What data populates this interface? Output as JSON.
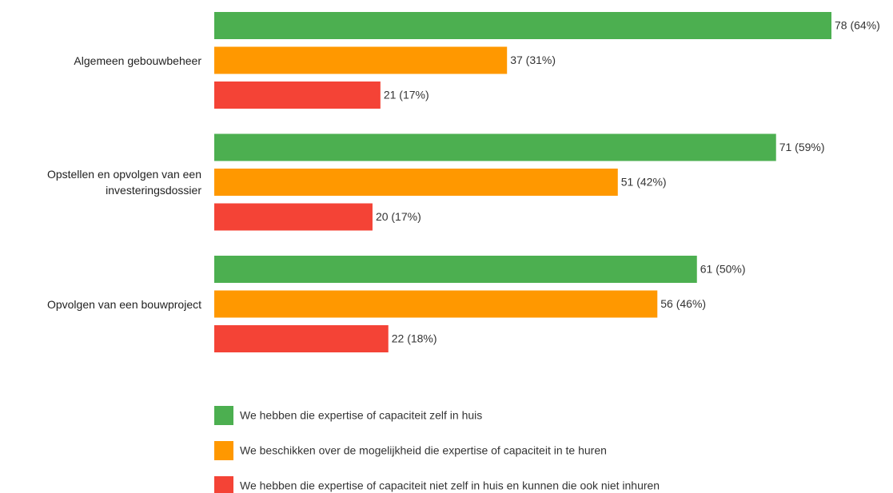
{
  "chart_data": {
    "type": "bar",
    "orientation": "horizontal",
    "categories": [
      "Algemeen gebouwbeheer",
      "Opstellen en opvolgen van een investeringsdossier",
      "Opvolgen van een bouwproject"
    ],
    "series": [
      {
        "name": "We hebben die expertise of capaciteit zelf in huis",
        "color": "#4caf50",
        "values": [
          78,
          71,
          61
        ],
        "value_labels": [
          "78 (64%)",
          "71 (59%)",
          "61 (50%)"
        ]
      },
      {
        "name": "We beschikken over de mogelijkheid die expertise of capaciteit in te huren",
        "color": "#ff9800",
        "values": [
          37,
          51,
          56
        ],
        "value_labels": [
          "37 (31%)",
          "51 (42%)",
          "56 (46%)"
        ]
      },
      {
        "name": "We hebben die expertise of capaciteit niet zelf in huis en kunnen die ook niet inhuren",
        "color": "#f44336",
        "values": [
          21,
          20,
          22
        ],
        "value_labels": [
          "21 (17%)",
          "20 (17%)",
          "22 (18%)"
        ]
      }
    ],
    "legend": "bottom"
  }
}
